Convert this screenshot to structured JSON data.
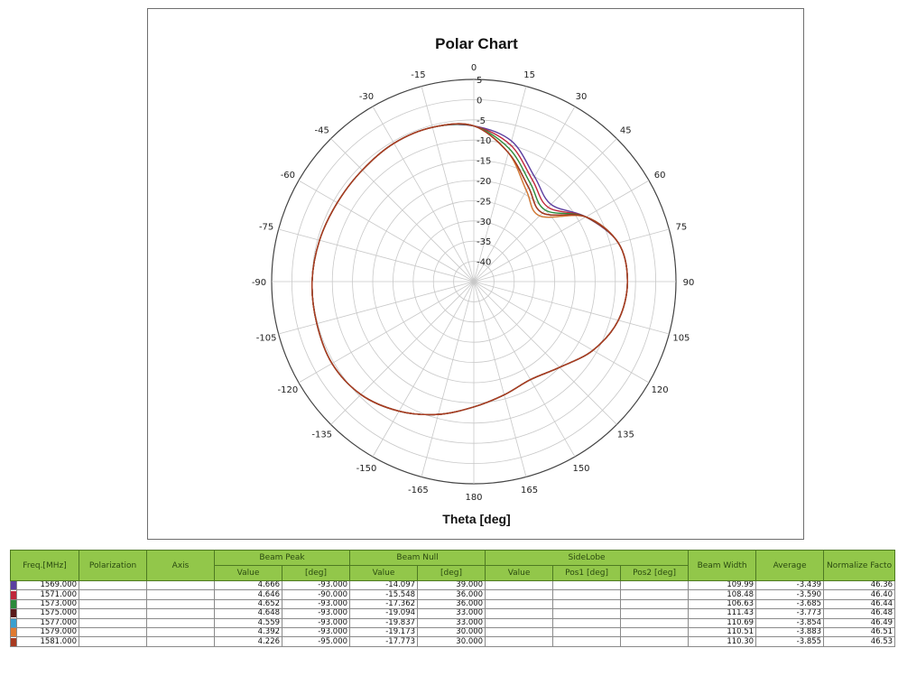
{
  "chart_data": {
    "type": "polar-line",
    "title": "Polar Chart",
    "axis_title": "Theta [deg]",
    "angle_ticks": [
      "0",
      "15",
      "30",
      "45",
      "60",
      "75",
      "90",
      "105",
      "120",
      "135",
      "150",
      "165",
      "180",
      "-165",
      "-150",
      "-135",
      "-120",
      "-105",
      "-90",
      "-75",
      "-60",
      "-45",
      "-30",
      "-15"
    ],
    "angle_tick_values": [
      0,
      15,
      30,
      45,
      60,
      75,
      90,
      105,
      120,
      135,
      150,
      165,
      180,
      -165,
      -150,
      -135,
      -120,
      -105,
      -90,
      -75,
      -60,
      -45,
      -30,
      -15
    ],
    "radial_ticks": [
      "5",
      "0",
      "-5",
      "-10",
      "-15",
      "-20",
      "-25",
      "-30",
      "-35",
      "-40"
    ],
    "radial_range": [
      -45,
      5
    ],
    "grid": true,
    "theta_deg": [
      0,
      15,
      30,
      45,
      60,
      75,
      90,
      105,
      120,
      135,
      150,
      165,
      180,
      195,
      210,
      225,
      240,
      255,
      270,
      285,
      300,
      315,
      330,
      345
    ],
    "series": [
      {
        "name": "1569.000",
        "color": "#5b3fa0",
        "values": [
          -6.5,
          -9,
          -15,
          -18,
          -13,
          -8,
          -7,
          -8,
          -11,
          -15,
          -17,
          -16,
          -14,
          -11,
          -8,
          -5.5,
          -4.5,
          -4.8,
          -5,
          -5.5,
          -6,
          -6,
          -5.5,
          -5.5
        ]
      },
      {
        "name": "1571.000",
        "color": "#c0263a",
        "values": [
          -6.5,
          -10,
          -16,
          -19,
          -13,
          -8,
          -7,
          -8,
          -11,
          -15,
          -17,
          -16,
          -14,
          -11,
          -8,
          -5.5,
          -4.5,
          -4.8,
          -5,
          -5.5,
          -6,
          -6,
          -5.5,
          -5.5
        ]
      },
      {
        "name": "1573.000",
        "color": "#2a8a3a",
        "values": [
          -6.5,
          -11,
          -17,
          -20,
          -13,
          -8,
          -7,
          -8,
          -11,
          -15,
          -17,
          -16,
          -14,
          -11,
          -8,
          -5.5,
          -4.5,
          -4.8,
          -5,
          -5.5,
          -6,
          -6,
          -5.5,
          -5.5
        ]
      },
      {
        "name": "1575.000",
        "color": "#5a1a1a",
        "values": [
          -6.5,
          -12,
          -18,
          -21,
          -13,
          -8,
          -7,
          -8,
          -11,
          -15,
          -17,
          -16,
          -14,
          -11,
          -8,
          -5.5,
          -4.5,
          -4.8,
          -5,
          -5.5,
          -6,
          -6,
          -5.5,
          -5.5
        ]
      },
      {
        "name": "1577.000",
        "color": "#3aa0d0",
        "values": [
          -6.5,
          -12,
          -19,
          -22,
          -13,
          -8,
          -7,
          -8,
          -11,
          -15,
          -17,
          -16,
          -14,
          -11,
          -8,
          -5.5,
          -4.5,
          -4.8,
          -5,
          -5.5,
          -6,
          -6,
          -5.5,
          -5.5
        ]
      },
      {
        "name": "1579.000",
        "color": "#e07a30",
        "values": [
          -6.5,
          -12,
          -19,
          -22,
          -13,
          -8,
          -7,
          -8,
          -11,
          -15,
          -17,
          -16,
          -14,
          -11,
          -8,
          -5.5,
          -4.5,
          -4.8,
          -5,
          -5.5,
          -6,
          -6,
          -5.5,
          -5.5
        ]
      },
      {
        "name": "1581.000",
        "color": "#a83a20",
        "values": [
          -6.5,
          -12,
          -18,
          -21,
          -13,
          -8,
          -7,
          -8,
          -11,
          -15,
          -17,
          -16,
          -14,
          -11,
          -8,
          -5.5,
          -4.5,
          -4.8,
          -5,
          -5.5,
          -6,
          -6,
          -5.5,
          -5.5
        ]
      }
    ]
  },
  "table": {
    "headers": {
      "freq": "Freq.[MHz]",
      "polarization": "Polarization",
      "axis": "Axis",
      "beam_peak": "Beam Peak",
      "beam_null": "Beam Null",
      "sidelobe": "SideLobe",
      "beam_width": "Beam Width",
      "average": "Average",
      "normalize": "Normalize Facto",
      "value": "Value",
      "deg": "[deg]",
      "pos1": "Pos1 [deg]",
      "pos2": "Pos2 [deg]"
    },
    "rows": [
      {
        "color": "#5b3fa0",
        "freq": "1569.000",
        "peak_value": "4.666",
        "peak_deg": "-93.000",
        "null_value": "-14.097",
        "null_deg": "39.000",
        "beam_width": "109.99",
        "average": "-3.439",
        "normalize": "46.36"
      },
      {
        "color": "#c0263a",
        "freq": "1571.000",
        "peak_value": "4.646",
        "peak_deg": "-90.000",
        "null_value": "-15.548",
        "null_deg": "36.000",
        "beam_width": "108.48",
        "average": "-3.590",
        "normalize": "46.40"
      },
      {
        "color": "#2a8a3a",
        "freq": "1573.000",
        "peak_value": "4.652",
        "peak_deg": "-93.000",
        "null_value": "-17.362",
        "null_deg": "36.000",
        "beam_width": "106.63",
        "average": "-3.685",
        "normalize": "46.44"
      },
      {
        "color": "#5a1a1a",
        "freq": "1575.000",
        "peak_value": "4.648",
        "peak_deg": "-93.000",
        "null_value": "-19.094",
        "null_deg": "33.000",
        "beam_width": "111.43",
        "average": "-3.773",
        "normalize": "46.48"
      },
      {
        "color": "#3aa0d0",
        "freq": "1577.000",
        "peak_value": "4.559",
        "peak_deg": "-93.000",
        "null_value": "-19.837",
        "null_deg": "33.000",
        "beam_width": "110.69",
        "average": "-3.854",
        "normalize": "46.49"
      },
      {
        "color": "#e07a30",
        "freq": "1579.000",
        "peak_value": "4.392",
        "peak_deg": "-93.000",
        "null_value": "-19.173",
        "null_deg": "30.000",
        "beam_width": "110.51",
        "average": "-3.883",
        "normalize": "46.51"
      },
      {
        "color": "#a83a20",
        "freq": "1581.000",
        "peak_value": "4.226",
        "peak_deg": "-95.000",
        "null_value": "-17.773",
        "null_deg": "30.000",
        "beam_width": "110.30",
        "average": "-3.855",
        "normalize": "46.53"
      }
    ]
  }
}
